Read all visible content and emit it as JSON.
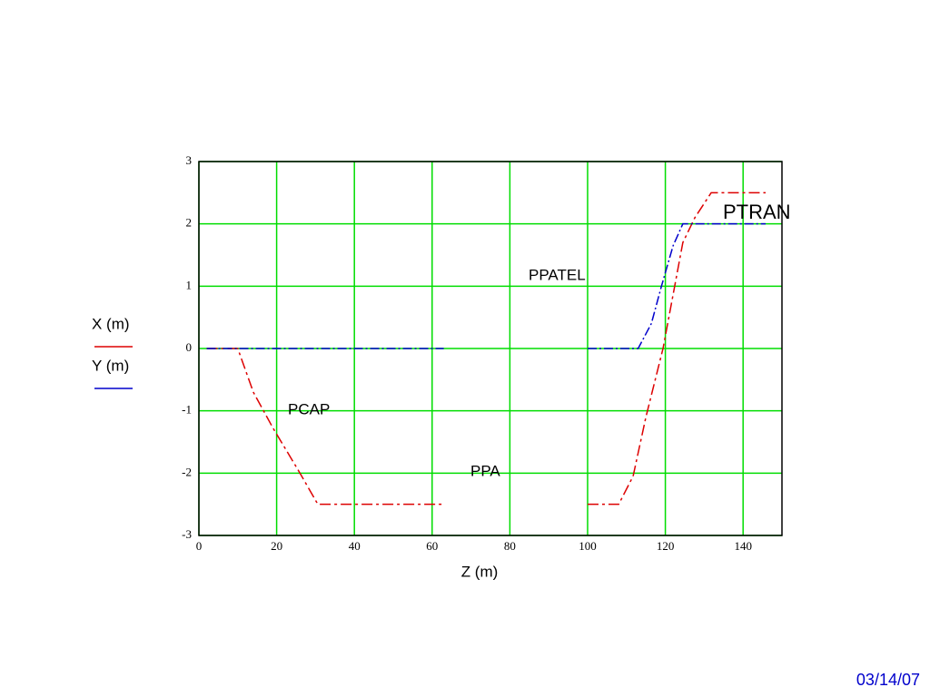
{
  "chart_data": {
    "type": "line",
    "xlabel": "Z (m)",
    "xlim": [
      0,
      150
    ],
    "xticks": [
      0,
      20,
      40,
      60,
      80,
      100,
      120,
      140
    ],
    "ylim": [
      -3,
      3
    ],
    "yticks": [
      -3,
      -2,
      -1,
      0,
      1,
      2,
      3
    ],
    "grid": true,
    "grid_color": "#00dd00",
    "series": [
      {
        "name": "X (m)",
        "color": "#dd0000",
        "x": [
          2,
          10,
          14,
          19,
          26,
          30.6,
          63,
          80,
          100,
          108,
          111.7,
          115,
          119.4,
          124.5,
          127.6,
          131.8,
          145.8
        ],
        "values": [
          0,
          0,
          -0.7,
          -1.27,
          -2,
          -2.5,
          -2.5,
          null,
          -2.5,
          -2.5,
          -2.05,
          -1.1,
          0,
          1.7,
          2.1,
          2.5,
          2.5
        ]
      },
      {
        "name": "Y (m)",
        "color": "#0000cc",
        "x": [
          2,
          63,
          80,
          100,
          113,
          116.4,
          119,
          122,
          124.5,
          145.8
        ],
        "values": [
          0,
          0,
          null,
          0,
          0,
          0.4,
          1,
          1.65,
          2,
          2
        ]
      }
    ],
    "annotations": [
      "PCAP",
      "PPA",
      "PPATEL",
      "PTRAN"
    ]
  },
  "footer": "03/14/07"
}
